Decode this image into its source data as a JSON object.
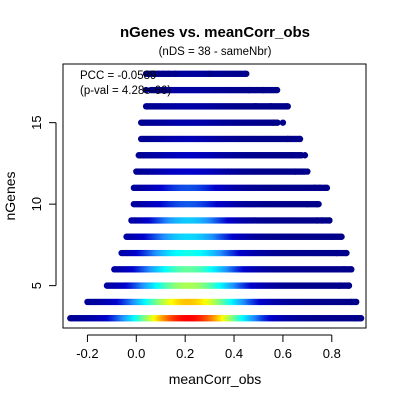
{
  "chart_data": {
    "type": "scatter",
    "title": "nGenes vs. meanCorr_obs",
    "subtitle": "(nDS = 38 - sameNbr)",
    "xlabel": "meanCorr_obs",
    "ylabel": "nGenes",
    "xlim": [
      -0.3,
      0.94
    ],
    "ylim": [
      2.4,
      18.6
    ],
    "x_ticks": [
      -0.2,
      0.0,
      0.2,
      0.4,
      0.6,
      0.8
    ],
    "x_tick_labels": [
      "-0.2",
      "0.0",
      "0.2",
      "0.4",
      "0.6",
      "0.8"
    ],
    "y_ticks": [
      5,
      10,
      15
    ],
    "y_tick_labels": [
      "5",
      "10",
      "15"
    ],
    "annotations": [
      "PCC = -0.0589",
      "(p-val = 4.28e-66)"
    ],
    "color_scale": "density (darkblue low → cyan → yellow → red high)",
    "colors": [
      "#00008B",
      "#0000CD",
      "#1E90FF",
      "#00FFFF",
      "#7FFF7F",
      "#FFFF00",
      "#FF7F00",
      "#FF0000"
    ],
    "rows": [
      {
        "y": 3,
        "x_min": -0.27,
        "x_max": 0.92,
        "center": 0.22,
        "spread": 0.17,
        "peak": 1.0
      },
      {
        "y": 4,
        "x_min": -0.2,
        "x_max": 0.9,
        "center": 0.22,
        "spread": 0.16,
        "peak": 0.78
      },
      {
        "y": 5,
        "x_min": -0.12,
        "x_max": 0.87,
        "center": 0.22,
        "spread": 0.15,
        "peak": 0.62
      },
      {
        "y": 6,
        "x_min": -0.09,
        "x_max": 0.88,
        "center": 0.22,
        "spread": 0.14,
        "peak": 0.54
      },
      {
        "y": 7,
        "x_min": -0.06,
        "x_max": 0.86,
        "center": 0.22,
        "spread": 0.14,
        "peak": 0.45
      },
      {
        "y": 8,
        "x_min": -0.04,
        "x_max": 0.84,
        "center": 0.22,
        "spread": 0.13,
        "peak": 0.38
      },
      {
        "y": 9,
        "x_min": -0.02,
        "x_max": 0.79,
        "center": 0.22,
        "spread": 0.12,
        "peak": 0.36
      },
      {
        "y": 10,
        "x_min": -0.01,
        "x_max": 0.75,
        "center": 0.22,
        "spread": 0.12,
        "peak": 0.23
      },
      {
        "y": 11,
        "x_min": -0.01,
        "x_max": 0.78,
        "center": 0.22,
        "spread": 0.12,
        "peak": 0.22
      },
      {
        "y": 12,
        "x_min": 0.0,
        "x_max": 0.69,
        "center": 0.22,
        "spread": 0.11,
        "peak": 0.14
      },
      {
        "y": 13,
        "x_min": 0.01,
        "x_max": 0.68,
        "center": 0.22,
        "spread": 0.11,
        "peak": 0.12
      },
      {
        "y": 14,
        "x_min": 0.02,
        "x_max": 0.67,
        "center": 0.22,
        "spread": 0.1,
        "peak": 0.09
      },
      {
        "y": 15,
        "x_min": 0.02,
        "x_max": 0.58,
        "center": 0.22,
        "spread": 0.1,
        "peak": 0.07
      },
      {
        "y": 16,
        "x_min": 0.04,
        "x_max": 0.62,
        "center": 0.22,
        "spread": 0.1,
        "peak": 0.06
      },
      {
        "y": 17,
        "x_min": 0.06,
        "x_max": 0.58,
        "center": 0.22,
        "spread": 0.1,
        "peak": 0.05
      },
      {
        "y": 18,
        "x_min": 0.04,
        "x_max": 0.45,
        "center": 0.22,
        "spread": 0.1,
        "peak": 0.04
      }
    ],
    "sparse_points": [
      {
        "x": 0.06,
        "y": 18
      },
      {
        "x": 0.09,
        "y": 18
      },
      {
        "x": 0.11,
        "y": 18
      },
      {
        "x": 0.13,
        "y": 18
      },
      {
        "x": 0.16,
        "y": 18
      },
      {
        "x": 0.3,
        "y": 18
      },
      {
        "x": 0.45,
        "y": 18
      },
      {
        "x": 0.04,
        "y": 17
      },
      {
        "x": 0.46,
        "y": 17
      },
      {
        "x": 0.52,
        "y": 17
      },
      {
        "x": 0.49,
        "y": 16
      },
      {
        "x": 0.55,
        "y": 16
      },
      {
        "x": 0.62,
        "y": 16
      },
      {
        "x": 0.56,
        "y": 15
      },
      {
        "x": 0.6,
        "y": 15
      },
      {
        "x": 0.62,
        "y": 14
      },
      {
        "x": 0.67,
        "y": 14
      },
      {
        "x": 0.64,
        "y": 13
      },
      {
        "x": 0.69,
        "y": 13
      },
      {
        "x": 0.65,
        "y": 12
      },
      {
        "x": 0.7,
        "y": 12
      },
      {
        "x": 0.73,
        "y": 11
      },
      {
        "x": 0.75,
        "y": 11
      },
      {
        "x": 0.78,
        "y": 11
      },
      {
        "x": 0.7,
        "y": 10
      },
      {
        "x": 0.74,
        "y": 10
      },
      {
        "x": 0.74,
        "y": 9
      },
      {
        "x": 0.76,
        "y": 9
      },
      {
        "x": 0.79,
        "y": 9
      },
      {
        "x": 0.8,
        "y": 8
      },
      {
        "x": 0.84,
        "y": 8
      },
      {
        "x": 0.82,
        "y": 7
      },
      {
        "x": 0.86,
        "y": 7
      },
      {
        "x": 0.85,
        "y": 6
      },
      {
        "x": 0.88,
        "y": 6
      },
      {
        "x": 0.83,
        "y": 5
      },
      {
        "x": 0.87,
        "y": 5
      },
      {
        "x": 0.88,
        "y": 4
      },
      {
        "x": 0.9,
        "y": 4
      },
      {
        "x": 0.9,
        "y": 3
      },
      {
        "x": 0.92,
        "y": 3
      }
    ]
  }
}
